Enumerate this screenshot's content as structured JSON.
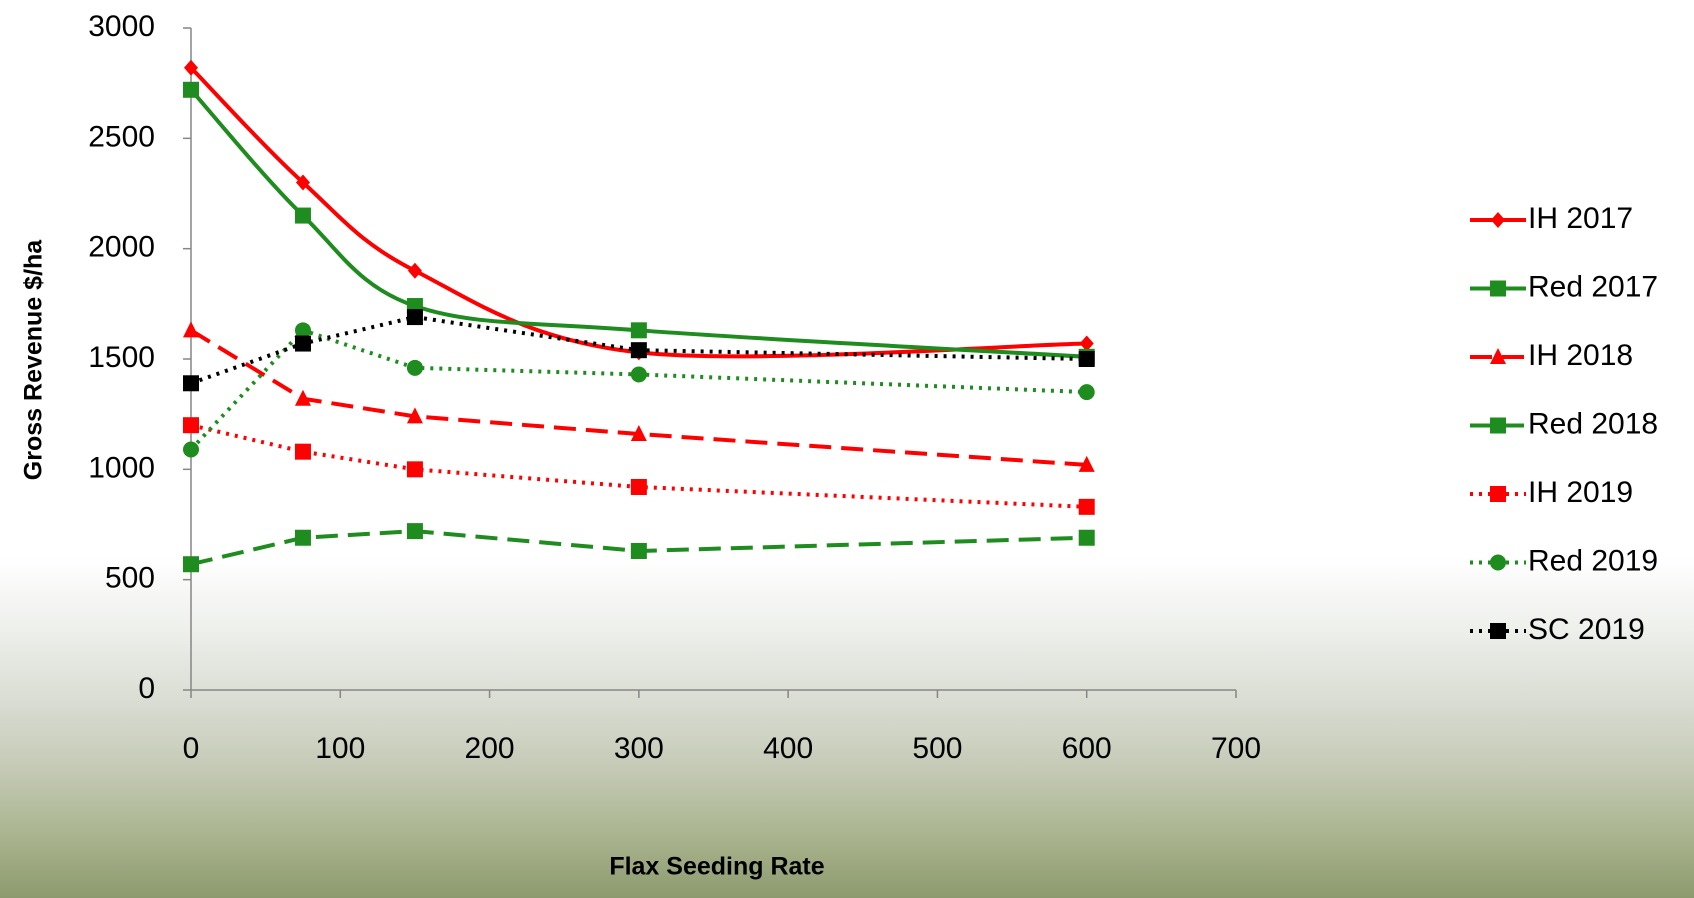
{
  "chart_data": {
    "type": "line",
    "x_label": "Flax Seeding Rate",
    "y_label": "Gross Revenue $/ha",
    "x": [
      0,
      75,
      150,
      300,
      600
    ],
    "xlim": [
      0,
      700
    ],
    "xticks": [
      0,
      100,
      200,
      300,
      400,
      500,
      600,
      700
    ],
    "ylim": [
      0,
      3000
    ],
    "yticks": [
      0,
      500,
      1000,
      1500,
      2000,
      2500,
      3000
    ],
    "legend": "right",
    "series": [
      {
        "name": "IH 2017",
        "color": "#ff0000",
        "dash": "solid",
        "marker": "diamond",
        "smooth": true,
        "values": [
          2820,
          2300,
          1900,
          1530,
          1570
        ]
      },
      {
        "name": "Red 2017",
        "color": "#1e8c1e",
        "dash": "solid",
        "marker": "square",
        "smooth": true,
        "values": [
          2720,
          2150,
          1740,
          1630,
          1510
        ]
      },
      {
        "name": "IH 2018",
        "color": "#ff0000",
        "dash": "dashed",
        "marker": "triangle",
        "smooth": false,
        "values": [
          1630,
          1320,
          1240,
          1160,
          1020
        ]
      },
      {
        "name": "Red 2018",
        "color": "#1e8c1e",
        "dash": "dashed",
        "marker": "square",
        "smooth": false,
        "values": [
          570,
          690,
          720,
          630,
          690
        ]
      },
      {
        "name": "IH 2019",
        "color": "#ff0000",
        "dash": "dotted",
        "marker": "square",
        "smooth": false,
        "values": [
          1200,
          1080,
          1000,
          920,
          830
        ]
      },
      {
        "name": "Red 2019",
        "color": "#1e8c1e",
        "dash": "dotted",
        "marker": "circle",
        "smooth": false,
        "values": [
          1090,
          1630,
          1460,
          1430,
          1350
        ]
      },
      {
        "name": "SC 2019",
        "color": "#000000",
        "dash": "dotted",
        "marker": "square",
        "smooth": false,
        "values": [
          1390,
          1570,
          1690,
          1540,
          1500
        ]
      }
    ]
  }
}
